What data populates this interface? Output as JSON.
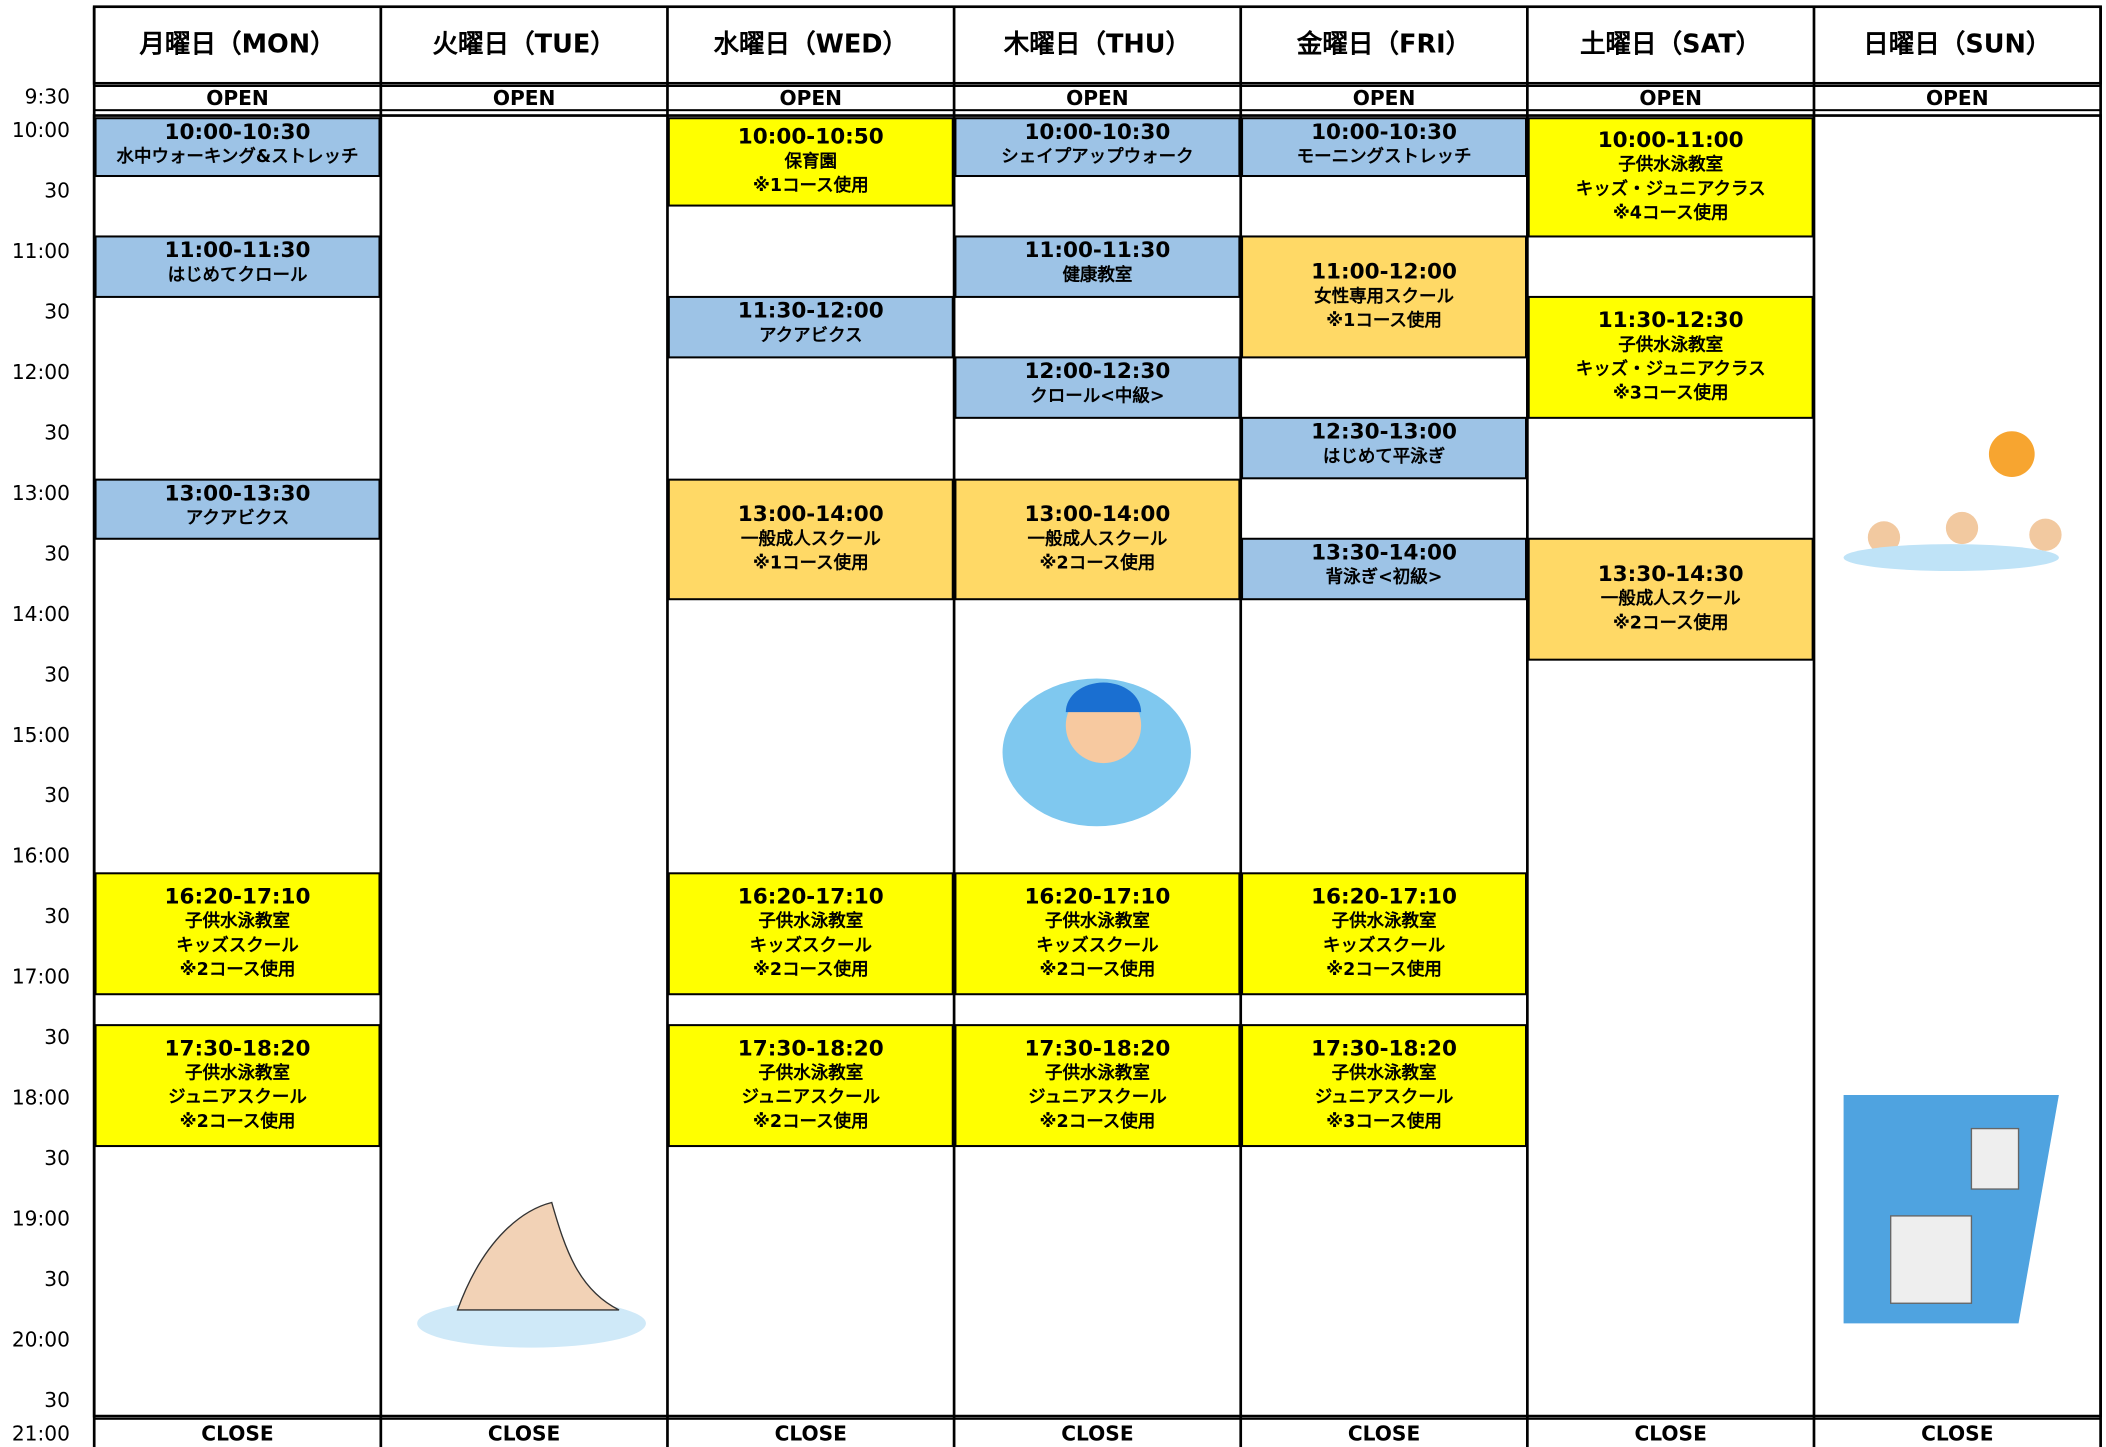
{
  "times": [
    "9:30",
    "10:00",
    "30",
    "11:00",
    "30",
    "12:00",
    "30",
    "13:00",
    "30",
    "14:00",
    "30",
    "15:00",
    "30",
    "16:00",
    "30",
    "17:00",
    "30",
    "18:00",
    "30",
    "19:00",
    "30",
    "20:00",
    "30",
    "21:00"
  ],
  "days": [
    {
      "label": "月曜日（MON）",
      "open": "OPEN",
      "close": "CLOSE",
      "classes": [
        {
          "time": "10:00-10:30",
          "lines": [
            "水中ウォーキング&ストレッチ"
          ],
          "color": "#9dc3e6"
        },
        {
          "time": "11:00-11:30",
          "lines": [
            "はじめてクロール"
          ],
          "color": "#9dc3e6"
        },
        {
          "time": "13:00-13:30",
          "lines": [
            "アクアビクス"
          ],
          "color": "#9dc3e6"
        },
        {
          "time": "16:20-17:10",
          "lines": [
            "子供水泳教室",
            "キッズスクール",
            "※2コース使用"
          ],
          "color": "#ffff00"
        },
        {
          "time": "17:30-18:20",
          "lines": [
            "子供水泳教室",
            "ジュニアスクール",
            "※2コース使用"
          ],
          "color": "#ffff00"
        }
      ]
    },
    {
      "label": "火曜日（TUE）",
      "open": "OPEN",
      "close": "CLOSE",
      "classes": []
    },
    {
      "label": "水曜日（WED）",
      "open": "OPEN",
      "close": "CLOSE",
      "classes": [
        {
          "time": "10:00-10:50",
          "lines": [
            "保育園",
            "※1コース使用"
          ],
          "color": "#ffff00"
        },
        {
          "time": "11:30-12:00",
          "lines": [
            "アクアビクス"
          ],
          "color": "#9dc3e6"
        },
        {
          "time": "13:00-14:00",
          "lines": [
            "一般成人スクール",
            "※1コース使用"
          ],
          "color": "#ffd966"
        },
        {
          "time": "16:20-17:10",
          "lines": [
            "子供水泳教室",
            "キッズスクール",
            "※2コース使用"
          ],
          "color": "#ffff00"
        },
        {
          "time": "17:30-18:20",
          "lines": [
            "子供水泳教室",
            "ジュニアスクール",
            "※2コース使用"
          ],
          "color": "#ffff00"
        }
      ]
    },
    {
      "label": "木曜日（THU）",
      "open": "OPEN",
      "close": "CLOSE",
      "classes": [
        {
          "time": "10:00-10:30",
          "lines": [
            "シェイプアップウォーク"
          ],
          "color": "#9dc3e6"
        },
        {
          "time": "11:00-11:30",
          "lines": [
            "健康教室"
          ],
          "color": "#9dc3e6"
        },
        {
          "time": "12:00-12:30",
          "lines": [
            "クロール<中級>"
          ],
          "color": "#9dc3e6"
        },
        {
          "time": "13:00-14:00",
          "lines": [
            "一般成人スクール",
            "※2コース使用"
          ],
          "color": "#ffd966"
        },
        {
          "time": "16:20-17:10",
          "lines": [
            "子供水泳教室",
            "キッズスクール",
            "※2コース使用"
          ],
          "color": "#ffff00"
        },
        {
          "time": "17:30-18:20",
          "lines": [
            "子供水泳教室",
            "ジュニアスクール",
            "※2コース使用"
          ],
          "color": "#ffff00"
        }
      ]
    },
    {
      "label": "金曜日（FRI）",
      "open": "OPEN",
      "close": "CLOSE",
      "classes": [
        {
          "time": "10:00-10:30",
          "lines": [
            "モーニングストレッチ"
          ],
          "color": "#9dc3e6"
        },
        {
          "time": "11:00-12:00",
          "lines": [
            "女性専用スクール",
            "※1コース使用"
          ],
          "color": "#ffd966"
        },
        {
          "time": "12:30-13:00",
          "lines": [
            "はじめて平泳ぎ"
          ],
          "color": "#9dc3e6"
        },
        {
          "time": "13:30-14:00",
          "lines": [
            "背泳ぎ<初級>"
          ],
          "color": "#9dc3e6"
        },
        {
          "time": "16:20-17:10",
          "lines": [
            "子供水泳教室",
            "キッズスクール",
            "※2コース使用"
          ],
          "color": "#ffff00"
        },
        {
          "time": "17:30-18:20",
          "lines": [
            "子供水泳教室",
            "ジュニアスクール",
            "※3コース使用"
          ],
          "color": "#ffff00"
        }
      ]
    },
    {
      "label": "土曜日（SAT）",
      "open": "OPEN",
      "close": "CLOSE",
      "classes": [
        {
          "time": "10:00-11:00",
          "lines": [
            "子供水泳教室",
            "キッズ・ジュニアクラス",
            "※4コース使用"
          ],
          "color": "#ffff00"
        },
        {
          "time": "11:30-12:30",
          "lines": [
            "子供水泳教室",
            "キッズ・ジュニアクラス",
            "※3コース使用"
          ],
          "color": "#ffff00"
        },
        {
          "time": "13:30-14:30",
          "lines": [
            "一般成人スクール",
            "※2コース使用"
          ],
          "color": "#ffd966"
        }
      ]
    },
    {
      "label": "日曜日（SUN）",
      "open": "OPEN",
      "close": "CLOSE",
      "classes": []
    }
  ]
}
